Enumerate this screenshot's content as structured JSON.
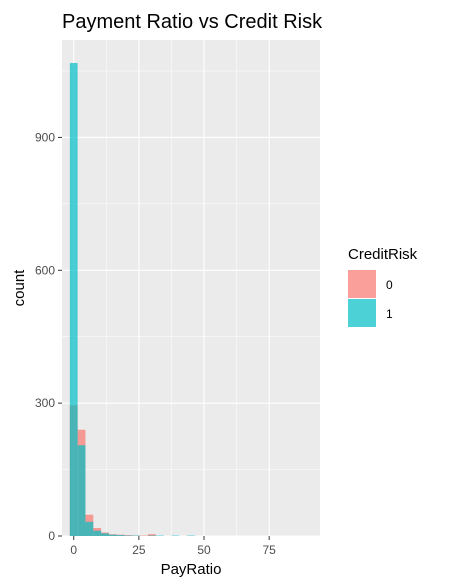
{
  "chart_data": {
    "type": "bar",
    "subtype": "overlapping-histogram",
    "title": "Payment Ratio vs Credit Risk",
    "xlabel": "PayRatio",
    "ylabel": "count",
    "xlim": [
      -4.5,
      94.5
    ],
    "ylim": [
      0,
      1120
    ],
    "x_ticks": [
      0,
      25,
      50,
      75
    ],
    "y_ticks": [
      0,
      300,
      600,
      900
    ],
    "grid": true,
    "bin_width": 3,
    "bin_centers": [
      0,
      3,
      6,
      9,
      12,
      15,
      18,
      21,
      24,
      27,
      30,
      33,
      36,
      39,
      42,
      45,
      48
    ],
    "legend": {
      "title": "CreditRisk",
      "placement": "right"
    },
    "colors": {
      "0": "#F8766D",
      "1": "#00BFC4",
      "panel": "#EBEBEB",
      "grid": "#FFFFFF"
    },
    "series": [
      {
        "name": "0",
        "values": [
          295,
          240,
          48,
          18,
          8,
          4,
          3,
          2,
          1,
          1,
          4,
          0,
          0,
          0,
          0,
          0,
          0
        ]
      },
      {
        "name": "1",
        "values": [
          1068,
          205,
          32,
          12,
          6,
          3,
          2,
          1,
          1,
          0,
          1,
          1,
          0,
          1,
          0,
          1,
          0
        ]
      }
    ]
  }
}
